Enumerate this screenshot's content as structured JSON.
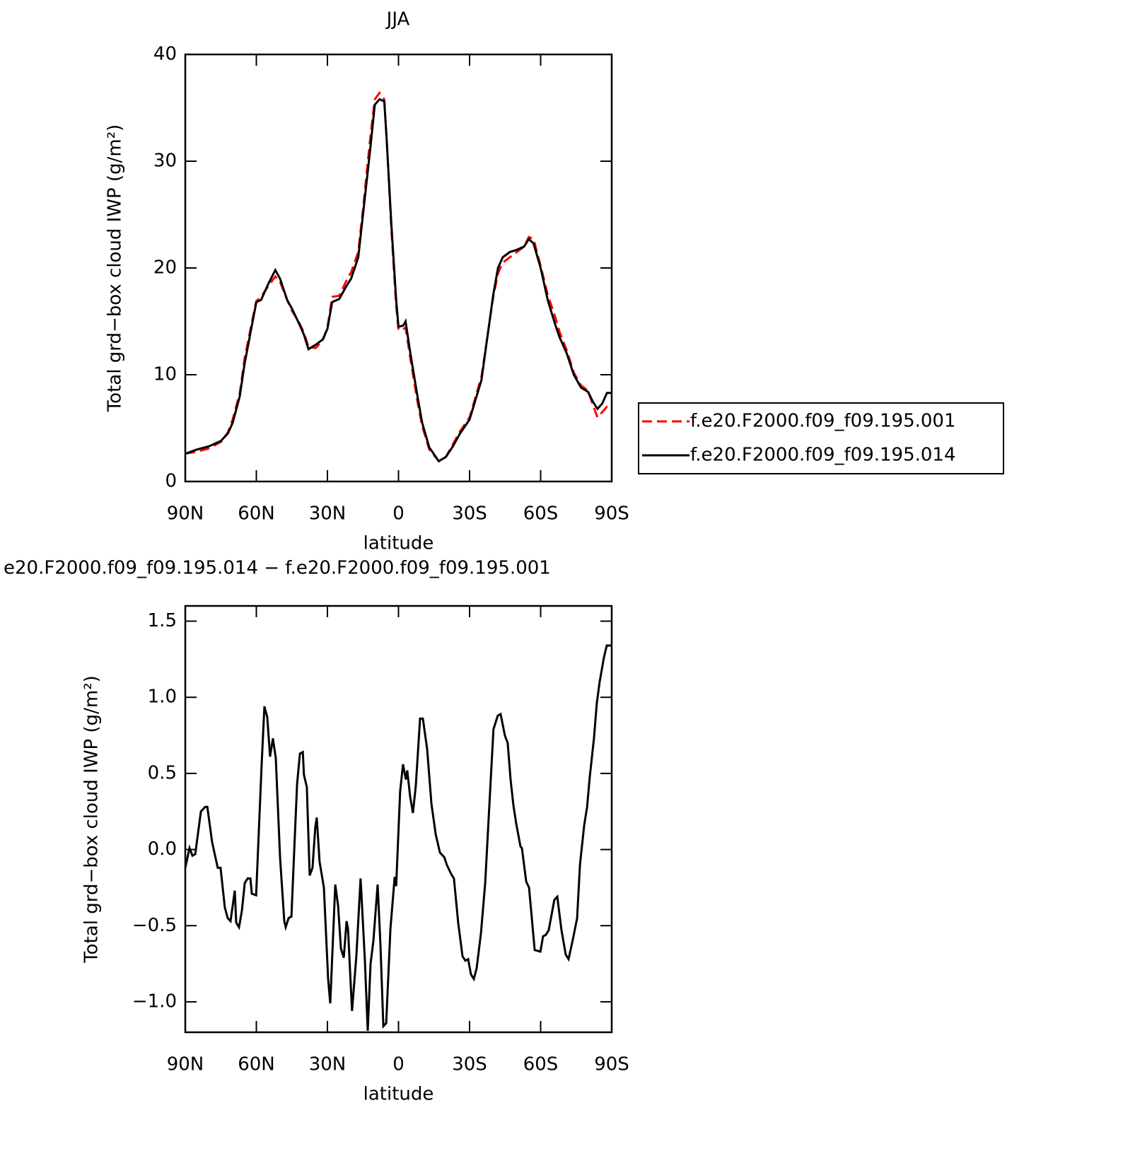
{
  "chart_data": [
    {
      "type": "line",
      "title": "JJA",
      "xlabel": "latitude",
      "ylabel": "Total grd−box cloud IWP (g/m²)",
      "x": [
        90,
        85,
        80,
        75,
        72,
        70,
        67,
        65,
        62,
        60,
        58,
        55,
        52,
        50,
        47,
        45,
        42,
        40,
        38,
        35,
        32,
        30,
        28,
        25,
        22,
        20,
        17,
        15,
        12,
        10,
        8,
        6,
        5,
        3,
        1,
        0,
        -2,
        -3,
        -5,
        -8,
        -10,
        -13,
        -17,
        -20,
        -23,
        -26,
        -30,
        -35,
        -40,
        -42,
        -44,
        -47,
        -50,
        -53,
        -55,
        -57,
        -60,
        -63,
        -66,
        -68,
        -71,
        -74,
        -77,
        -80,
        -82,
        -84,
        -86,
        -88,
        -90
      ],
      "series": [
        {
          "name": "f.e20.F2000.f09_f09.195.001",
          "color": "#ff0000",
          "dashed": true,
          "values": [
            2.6,
            2.8,
            3.1,
            3.7,
            4.6,
            5.8,
            8.3,
            11.5,
            14.8,
            16.9,
            17.3,
            18.3,
            19.2,
            18.7,
            17,
            16.0,
            14.9,
            14.0,
            12.6,
            12.5,
            13.2,
            14.4,
            17.3,
            17.4,
            18.8,
            19.6,
            21.5,
            25.5,
            32,
            35.8,
            36.4,
            35.8,
            32,
            23.5,
            16.5,
            14.2,
            14.3,
            14.4,
            11.5,
            7.5,
            5.2,
            3.0,
            1.9,
            2.3,
            3.5,
            4.7,
            6.0,
            9.8,
            17.3,
            19.5,
            20.5,
            21.0,
            21.5,
            22.0,
            22.9,
            22.7,
            20.2,
            17.5,
            15.5,
            14,
            12.3,
            10.2,
            9.0,
            8.5,
            7.2,
            6.0,
            6.5,
            7.0,
            6.9
          ]
        },
        {
          "name": "f.e20.F2000.f09_f09.195.014",
          "color": "#000000",
          "dashed": false,
          "values": [
            2.6,
            3.0,
            3.3,
            3.8,
            4.5,
            5.5,
            8.0,
            11,
            14.5,
            16.8,
            17.0,
            18.5,
            19.8,
            19.0,
            17,
            16.2,
            14.8,
            13.8,
            12.4,
            12.8,
            13.3,
            14.3,
            16.8,
            17.1,
            18.3,
            19.0,
            21,
            25,
            31,
            35.3,
            35.8,
            35.6,
            32,
            24,
            17,
            14.5,
            14.6,
            15.0,
            12,
            8,
            5.5,
            3.2,
            1.9,
            2.3,
            3.3,
            4.5,
            5.8,
            9.5,
            17.5,
            20,
            21,
            21.5,
            21.7,
            22.0,
            22.7,
            22.3,
            20,
            17,
            14.8,
            13.5,
            12,
            10,
            8.8,
            8.4,
            7.5,
            6.8,
            7.3,
            8.3,
            8.3
          ]
        }
      ],
      "xlim": [
        90,
        -90
      ],
      "xticks": [
        {
          "value": 90,
          "label": "90N"
        },
        {
          "value": 60,
          "label": "60N"
        },
        {
          "value": 30,
          "label": "30N"
        },
        0,
        {
          "value": -30,
          "label": "30S"
        },
        {
          "value": -60,
          "label": "60S"
        },
        {
          "value": -90,
          "label": "90S"
        }
      ],
      "ylim": [
        0,
        40
      ],
      "yticks": [
        0,
        10,
        20,
        30,
        40
      ],
      "legend": "right"
    },
    {
      "type": "line",
      "title": "e20.F2000.f09_f09.195.014 − f.e20.F2000.f09_f09.195.001",
      "xlabel": "latitude",
      "ylabel": "Total grd−box cloud IWP (g/m²)",
      "color": "#000000",
      "x": [
        90,
        88.2,
        87,
        85.8,
        83.4,
        81.6,
        80.7,
        78.7,
        76.3,
        75.1,
        73.3,
        72.1,
        70.9,
        69.1,
        68.5,
        67.3,
        66.1,
        64.9,
        63.7,
        62.5,
        61.9,
        60.1,
        57.8,
        56.6,
        55.4,
        54.2,
        53,
        51.8,
        50,
        48.2,
        47.6,
        46.4,
        45.2,
        44,
        42.8,
        41.6,
        40.4,
        39.9,
        38.7,
        37.5,
        36.3,
        35.1,
        34.5,
        33.3,
        31.5,
        29.7,
        28.8,
        26.7,
        25.5,
        24.3,
        23.1,
        21.9,
        21.3,
        19.6,
        17.8,
        16,
        14.2,
        13,
        11.8,
        10.6,
        8.8,
        7.6,
        6.4,
        5.2,
        3.4,
        1.6,
        1,
        -0.7,
        -1.9,
        -3.1,
        -3.7,
        -4.9,
        -6.1,
        -7.3,
        -9.1,
        -10.3,
        -12.1,
        -13.9,
        -15.7,
        -17.5,
        -19.3,
        -20.4,
        -22.2,
        -23.4,
        -25.2,
        -27,
        -28.2,
        -29.4,
        -30.6,
        -31.8,
        -33,
        -34.8,
        -36.6,
        -38.4,
        -40.1,
        -41.9,
        -43.1,
        -44.9,
        -46.1,
        -47.3,
        -48.5,
        -49.7,
        -51.5,
        -52.1,
        -53.9,
        -55.1,
        -57.5,
        -59.9,
        -61,
        -62.2,
        -63.4,
        -64.6,
        -65.8,
        -67,
        -68.8,
        -70.6,
        -71.8,
        -73.6,
        -75.4,
        -76.6,
        -78.4,
        -79.6,
        -80.7,
        -82.5,
        -83.7,
        -84.9,
        -86.7,
        -87.9,
        -89.1,
        -90
      ],
      "values": [
        -0.12,
        0.01,
        -0.04,
        -0.03,
        0.25,
        0.28,
        0.28,
        0.05,
        -0.12,
        -0.12,
        -0.38,
        -0.45,
        -0.47,
        -0.27,
        -0.48,
        -0.51,
        -0.4,
        -0.22,
        -0.19,
        -0.19,
        -0.29,
        -0.3,
        0.55,
        0.94,
        0.87,
        0.61,
        0.73,
        0.6,
        -0.05,
        -0.47,
        -0.51,
        -0.45,
        -0.44,
        0.0,
        0.43,
        0.63,
        0.64,
        0.49,
        0.41,
        -0.17,
        -0.12,
        0.15,
        0.21,
        -0.08,
        -0.25,
        -0.85,
        -1.01,
        -0.23,
        -0.37,
        -0.65,
        -0.71,
        -0.47,
        -0.52,
        -1.06,
        -0.7,
        -0.19,
        -0.72,
        -1.19,
        -0.75,
        -0.6,
        -0.23,
        -0.63,
        -1.16,
        -1.14,
        -0.52,
        -0.18,
        -0.24,
        0.38,
        0.56,
        0.46,
        0.52,
        0.35,
        0.24,
        0.42,
        0.86,
        0.86,
        0.66,
        0.3,
        0.1,
        -0.02,
        -0.05,
        -0.1,
        -0.16,
        -0.19,
        -0.48,
        -0.7,
        -0.73,
        -0.72,
        -0.82,
        -0.85,
        -0.78,
        -0.55,
        -0.22,
        0.3,
        0.79,
        0.88,
        0.89,
        0.75,
        0.7,
        0.46,
        0.29,
        0.17,
        0.02,
        0.01,
        -0.21,
        -0.25,
        -0.66,
        -0.67,
        -0.57,
        -0.56,
        -0.53,
        -0.43,
        -0.33,
        -0.31,
        -0.53,
        -0.69,
        -0.72,
        -0.59,
        -0.45,
        -0.1,
        0.16,
        0.28,
        0.47,
        0.73,
        0.96,
        1.1,
        1.26,
        1.34,
        1.34,
        1.34
      ],
      "xlim": [
        90,
        -90
      ],
      "xticks": [
        {
          "value": 90,
          "label": "90N"
        },
        {
          "value": 60,
          "label": "60N"
        },
        {
          "value": 30,
          "label": "30N"
        },
        0,
        {
          "value": -30,
          "label": "30S"
        },
        {
          "value": -60,
          "label": "60S"
        },
        {
          "value": -90,
          "label": "90S"
        }
      ],
      "ylim": [
        -1.2,
        1.6
      ],
      "yticks": [
        {
          "value": -1,
          "label": "−1.0"
        },
        {
          "value": -0.5,
          "label": "−0.5"
        },
        {
          "value": 0,
          "label": "0.0"
        },
        0.5,
        {
          "value": 1,
          "label": "1.0"
        },
        1.5
      ]
    }
  ]
}
